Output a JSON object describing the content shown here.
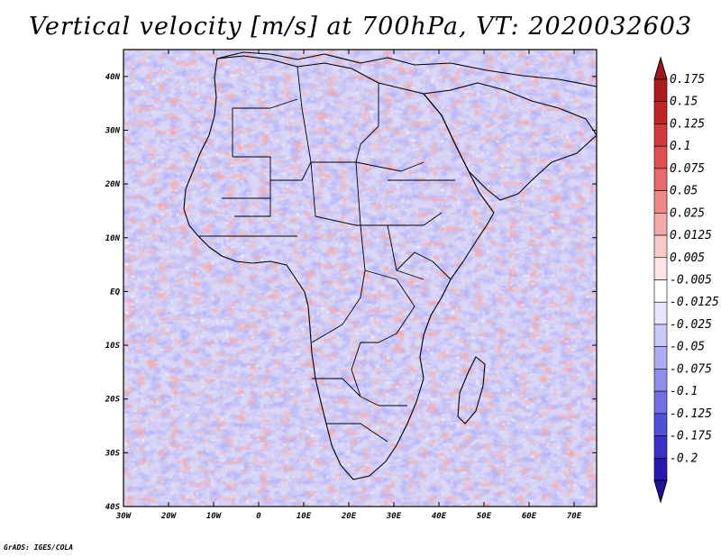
{
  "title": "Vertical velocity [m/s] at 700hPa, VT: 2020032603",
  "credit": "GrADS: IGES/COLA",
  "map": {
    "projection": "latlon",
    "lon_range": [
      -30,
      75
    ],
    "lat_range": [
      -40,
      45
    ],
    "lat_ticks": [
      {
        "value": 40,
        "label": "40N"
      },
      {
        "value": 30,
        "label": "30N"
      },
      {
        "value": 20,
        "label": "20N"
      },
      {
        "value": 10,
        "label": "10N"
      },
      {
        "value": 0,
        "label": "EQ"
      },
      {
        "value": -10,
        "label": "10S"
      },
      {
        "value": -20,
        "label": "20S"
      },
      {
        "value": -30,
        "label": "30S"
      },
      {
        "value": -40,
        "label": "40S"
      }
    ],
    "lon_ticks": [
      {
        "value": -30,
        "label": "30W"
      },
      {
        "value": -20,
        "label": "20W"
      },
      {
        "value": -10,
        "label": "10W"
      },
      {
        "value": 0,
        "label": "0"
      },
      {
        "value": 10,
        "label": "10E"
      },
      {
        "value": 20,
        "label": "20E"
      },
      {
        "value": 30,
        "label": "30E"
      },
      {
        "value": 40,
        "label": "40E"
      },
      {
        "value": 50,
        "label": "50E"
      },
      {
        "value": 60,
        "label": "60E"
      },
      {
        "value": 70,
        "label": "70E"
      }
    ],
    "field": "vertical velocity",
    "colors": {
      "ascent": "#c03030",
      "descent": "#3020c0",
      "neutral": "#ffffff",
      "boundaries": "#000000"
    }
  },
  "colorbar": {
    "orientation": "vertical",
    "extend": "both",
    "levels": [
      {
        "label": "0.175",
        "color": "#b01c1c"
      },
      {
        "label": "0.15",
        "color": "#c42424"
      },
      {
        "label": "0.125",
        "color": "#d43a3a"
      },
      {
        "label": "0.1",
        "color": "#e05050"
      },
      {
        "label": "0.075",
        "color": "#e86a6a"
      },
      {
        "label": "0.05",
        "color": "#f08888"
      },
      {
        "label": "0.025",
        "color": "#f6a8a8"
      },
      {
        "label": "0.0125",
        "color": "#fac8c8"
      },
      {
        "label": "0.005",
        "color": "#fde6e6"
      },
      {
        "label": "-0.005",
        "color": "#ffffff"
      },
      {
        "label": "-0.0125",
        "color": "#e6e6fc"
      },
      {
        "label": "-0.025",
        "color": "#cacaf8"
      },
      {
        "label": "-0.05",
        "color": "#acacf2"
      },
      {
        "label": "-0.075",
        "color": "#8e8eec"
      },
      {
        "label": "-0.1",
        "color": "#7070e4"
      },
      {
        "label": "-0.125",
        "color": "#5050d8"
      },
      {
        "label": "-0.175",
        "color": "#3a30c8"
      },
      {
        "label": "-0.2",
        "color": "#2818b0"
      }
    ],
    "top_extend_color": "#a01818",
    "bottom_extend_color": "#2010a0"
  }
}
